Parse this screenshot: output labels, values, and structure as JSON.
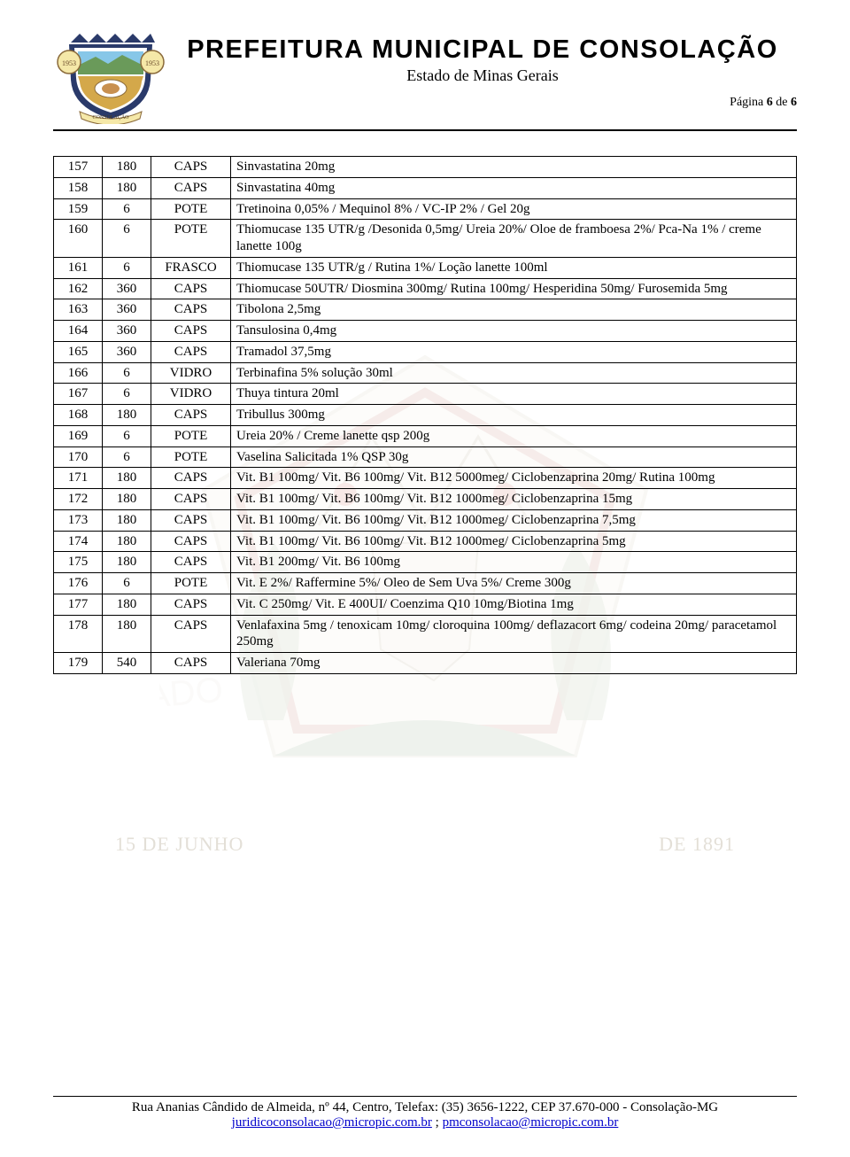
{
  "header": {
    "title": "PREFEITURA MUNICIPAL DE CONSOLAÇÃO",
    "subtitle": "Estado de Minas Gerais",
    "page_label": "Página",
    "page_current": "6",
    "page_of": "de",
    "page_total": "6"
  },
  "watermark": {
    "line1_left": "15 DE JUNHO",
    "line1_right": "DE 1891",
    "estado_text": "ESTADO"
  },
  "table": {
    "rows": [
      {
        "n": "157",
        "q": "180",
        "u": "CAPS",
        "d": "Sinvastatina 20mg"
      },
      {
        "n": "158",
        "q": "180",
        "u": "CAPS",
        "d": "Sinvastatina 40mg"
      },
      {
        "n": "159",
        "q": "6",
        "u": "POTE",
        "d": "Tretinoina 0,05% / Mequinol 8% / VC-IP 2% / Gel 20g"
      },
      {
        "n": "160",
        "q": "6",
        "u": "POTE",
        "d": "Thiomucase 135 UTR/g /Desonida 0,5mg/ Ureia 20%/ Oloe de framboesa 2%/ Pca-Na 1% / creme lanette 100g"
      },
      {
        "n": "161",
        "q": "6",
        "u": "FRASCO",
        "d": "Thiomucase 135 UTR/g / Rutina 1%/ Loção lanette 100ml"
      },
      {
        "n": "162",
        "q": "360",
        "u": "CAPS",
        "d": "Thiomucase 50UTR/ Diosmina 300mg/ Rutina 100mg/ Hesperidina 50mg/ Furosemida 5mg"
      },
      {
        "n": "163",
        "q": "360",
        "u": "CAPS",
        "d": "Tibolona 2,5mg"
      },
      {
        "n": "164",
        "q": "360",
        "u": "CAPS",
        "d": "Tansulosina 0,4mg"
      },
      {
        "n": "165",
        "q": "360",
        "u": "CAPS",
        "d": "Tramadol 37,5mg"
      },
      {
        "n": "166",
        "q": "6",
        "u": "VIDRO",
        "d": "Terbinafina 5% solução 30ml"
      },
      {
        "n": "167",
        "q": "6",
        "u": "VIDRO",
        "d": "Thuya tintura 20ml"
      },
      {
        "n": "168",
        "q": "180",
        "u": "CAPS",
        "d": "Tribullus 300mg"
      },
      {
        "n": "169",
        "q": "6",
        "u": "POTE",
        "d": "Ureia 20% / Creme lanette qsp 200g"
      },
      {
        "n": "170",
        "q": "6",
        "u": "POTE",
        "d": "Vaselina Salicitada 1% QSP 30g"
      },
      {
        "n": "171",
        "q": "180",
        "u": "CAPS",
        "d": "Vit. B1 100mg/ Vit. B6 100mg/ Vit. B12 5000meg/ Ciclobenzaprina 20mg/ Rutina 100mg"
      },
      {
        "n": "172",
        "q": "180",
        "u": "CAPS",
        "d": "Vit. B1 100mg/ Vit. B6 100mg/ Vit. B12 1000meg/ Ciclobenzaprina 15mg"
      },
      {
        "n": "173",
        "q": "180",
        "u": "CAPS",
        "d": "Vit. B1 100mg/ Vit. B6 100mg/ Vit. B12 1000meg/ Ciclobenzaprina 7,5mg"
      },
      {
        "n": "174",
        "q": "180",
        "u": "CAPS",
        "d": "Vit. B1 100mg/ Vit. B6 100mg/ Vit. B12 1000meg/ Ciclobenzaprina 5mg"
      },
      {
        "n": "175",
        "q": "180",
        "u": "CAPS",
        "d": "Vit. B1 200mg/ Vit. B6 100mg"
      },
      {
        "n": "176",
        "q": "6",
        "u": "POTE",
        "d": "Vit. E 2%/ Raffermine 5%/ Oleo de Sem Uva 5%/ Creme 300g"
      },
      {
        "n": "177",
        "q": "180",
        "u": "CAPS",
        "d": "Vit. C 250mg/ Vit. E 400UI/ Coenzima Q10 10mg/Biotina 1mg"
      },
      {
        "n": "178",
        "q": "180",
        "u": "CAPS",
        "d": "Venlafaxina 5mg / tenoxicam 10mg/ cloroquina 100mg/ deflazacort 6mg/ codeina 20mg/ paracetamol 250mg"
      },
      {
        "n": "179",
        "q": "540",
        "u": "CAPS",
        "d": "Valeriana 70mg"
      }
    ]
  },
  "footer": {
    "line1": "Rua Ananias Cândido de Almeida, nº 44, Centro, Telefax: (35) 3656-1222, CEP 37.670-000 - Consolação-MG",
    "email1": "juridicoconsolacao@micropic.com.br",
    "sep": " ; ",
    "email2": "pmconsolacao@micropic.com.br"
  },
  "colors": {
    "text": "#000000",
    "border": "#000000",
    "link": "#0000cc",
    "watermark_green": "#7d9e6f",
    "watermark_red": "#b86d5a",
    "watermark_grey": "#c8c0b0"
  }
}
